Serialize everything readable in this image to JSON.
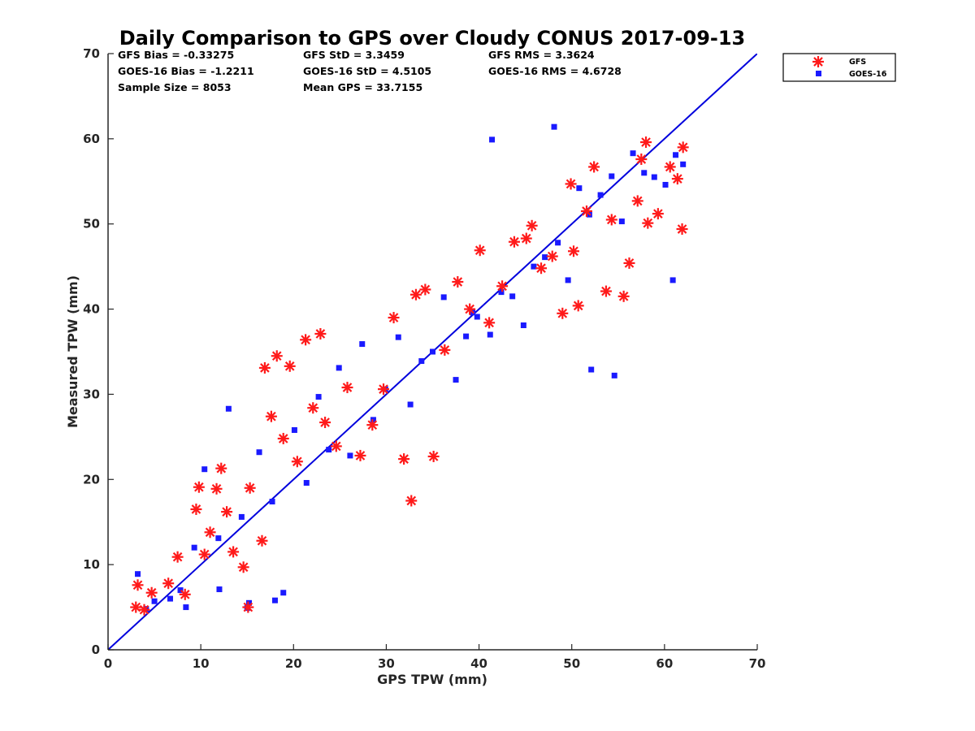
{
  "chart_data": {
    "type": "scatter",
    "title": "Daily Comparison to GPS over Cloudy CONUS 2017-09-13",
    "xlabel": "GPS TPW (mm)",
    "ylabel": "Measured TPW (mm)",
    "xlim": [
      0,
      70
    ],
    "ylim": [
      0,
      70
    ],
    "xticks": [
      0,
      10,
      20,
      30,
      40,
      50,
      60,
      70
    ],
    "yticks": [
      0,
      10,
      20,
      30,
      40,
      50,
      60,
      70
    ],
    "grid": false,
    "legend_position": "outside-top-right",
    "reference_line": {
      "x": [
        0,
        70
      ],
      "y": [
        0,
        70
      ],
      "color": "#0000dd"
    },
    "stats": [
      [
        "GFS Bias = -0.33275",
        "GFS StD = 3.3459",
        "GFS RMS = 3.3624"
      ],
      [
        "GOES-16 Bias = -1.2211",
        "GOES-16 StD = 4.5105",
        "GOES-16 RMS = 4.6728"
      ],
      [
        "Sample Size = 8053",
        "Mean GPS = 33.7155",
        ""
      ]
    ],
    "series": [
      {
        "name": "GFS",
        "marker": "asterisk",
        "color": "#ff1a1a",
        "x": [
          3.0,
          3.2,
          3.9,
          4.7,
          6.5,
          7.5,
          8.3,
          9.5,
          9.8,
          10.4,
          11.0,
          11.7,
          12.2,
          12.8,
          13.5,
          14.6,
          15.1,
          15.3,
          16.6,
          16.9,
          17.6,
          18.2,
          18.9,
          19.6,
          20.4,
          21.3,
          22.1,
          22.9,
          23.4,
          24.6,
          25.8,
          27.2,
          28.5,
          29.7,
          30.8,
          31.9,
          32.7,
          33.2,
          34.2,
          35.1,
          36.3,
          37.7,
          39.0,
          40.1,
          41.1,
          42.5,
          43.8,
          45.1,
          45.7,
          46.7,
          47.9,
          49.0,
          49.9,
          50.2,
          50.7,
          51.6,
          52.4,
          53.7,
          54.3,
          55.6,
          56.2,
          57.1,
          58.0,
          59.3,
          60.6,
          61.4,
          62.0,
          61.9,
          58.2,
          57.5
        ],
        "y": [
          5.0,
          7.6,
          4.7,
          6.7,
          7.8,
          10.9,
          6.5,
          16.5,
          19.1,
          11.2,
          13.8,
          18.9,
          21.3,
          16.2,
          11.5,
          9.7,
          5.0,
          19.0,
          12.8,
          33.1,
          27.4,
          34.5,
          24.8,
          33.3,
          22.1,
          36.4,
          28.4,
          37.1,
          26.7,
          23.9,
          30.8,
          22.8,
          26.4,
          30.6,
          39.0,
          22.4,
          17.5,
          41.7,
          42.3,
          22.7,
          35.2,
          43.2,
          40.0,
          46.9,
          38.4,
          42.7,
          47.9,
          48.3,
          49.8,
          44.8,
          46.2,
          39.5,
          54.7,
          46.8,
          40.4,
          51.5,
          56.7,
          42.1,
          50.5,
          41.5,
          45.4,
          52.7,
          59.6,
          51.2,
          56.7,
          55.3,
          59.0,
          49.4,
          50.1,
          57.6
        ]
      },
      {
        "name": "GOES-16",
        "marker": "square",
        "color": "#1a1aff",
        "x": [
          3.2,
          4.1,
          5.0,
          6.7,
          7.8,
          8.4,
          9.3,
          10.4,
          11.9,
          13.0,
          14.4,
          15.2,
          16.3,
          17.7,
          18.9,
          20.1,
          21.4,
          22.7,
          23.8,
          24.9,
          26.1,
          27.4,
          28.6,
          29.9,
          31.3,
          32.6,
          33.8,
          35.0,
          36.2,
          37.5,
          38.6,
          39.8,
          41.2,
          42.4,
          43.6,
          44.8,
          45.9,
          47.1,
          48.5,
          49.6,
          50.8,
          51.9,
          53.1,
          54.3,
          55.4,
          56.6,
          57.8,
          58.9,
          60.1,
          61.2,
          62.0,
          54.6,
          52.1,
          60.9,
          41.4,
          12.0,
          15.0,
          18.0,
          48.1,
          39.3
        ],
        "y": [
          8.9,
          4.8,
          5.7,
          6.0,
          7.0,
          5.0,
          12.0,
          21.2,
          13.1,
          28.3,
          15.6,
          5.5,
          23.2,
          17.4,
          6.7,
          25.8,
          19.6,
          29.7,
          23.5,
          33.1,
          22.8,
          35.9,
          27.0,
          30.6,
          36.7,
          28.8,
          33.9,
          35.0,
          41.4,
          31.7,
          36.8,
          39.1,
          37.0,
          42.0,
          41.5,
          38.1,
          45.0,
          46.1,
          47.8,
          43.4,
          54.2,
          51.1,
          53.4,
          55.6,
          50.3,
          58.3,
          56.0,
          55.5,
          54.6,
          58.1,
          57.0,
          32.2,
          32.9,
          43.4,
          59.9,
          7.1,
          4.9,
          5.8,
          61.4,
          39.6
        ]
      }
    ]
  }
}
